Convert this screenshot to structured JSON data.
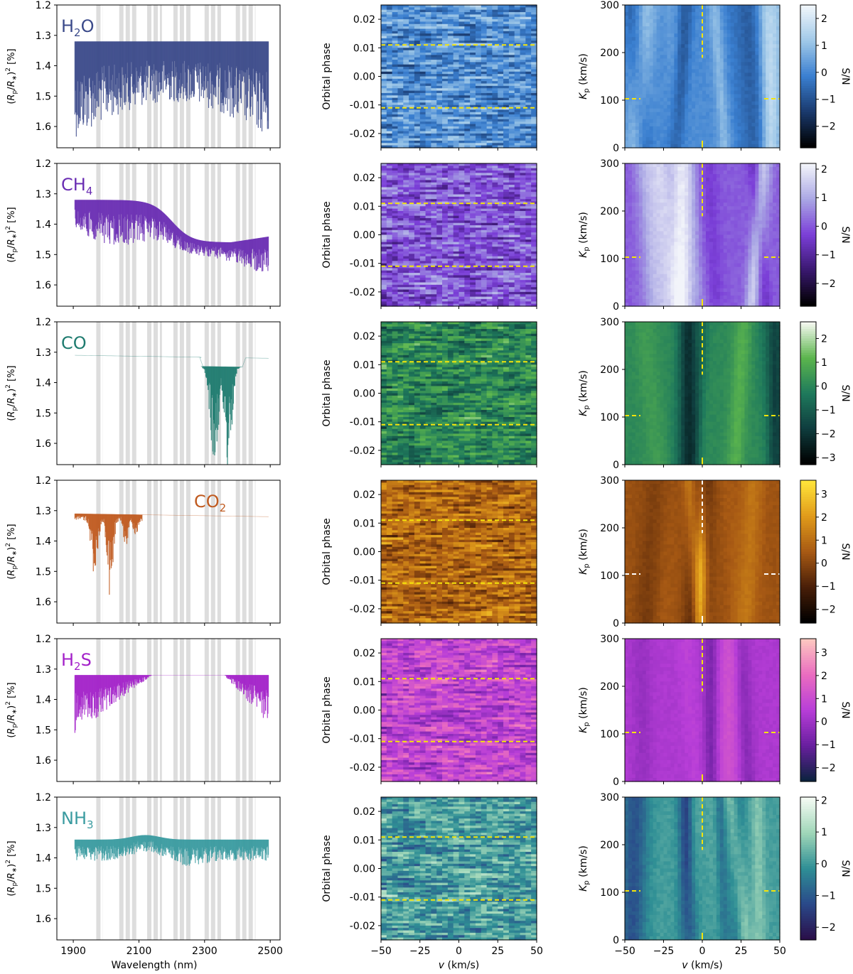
{
  "chart_data": {
    "type": "multi-panel",
    "rows": [
      {
        "species": "H2O",
        "label_main": "H",
        "label_sub": "2",
        "label_after": "O",
        "color": "#3b4a8a",
        "spectrum": {
          "min_rel": 0.0,
          "max_depth": 1.64,
          "baseline": 1.32,
          "profile": "water"
        },
        "cbar": {
          "ticks": [
            2,
            1,
            0,
            -1,
            -2
          ],
          "range": [
            -2.8,
            2.5
          ],
          "colors": [
            "#000000",
            "#1a3a6e",
            "#3a7fd0",
            "#9fc8e8",
            "#f0f6fb"
          ]
        }
      },
      {
        "species": "CH4",
        "label_main": "CH",
        "label_sub": "4",
        "label_after": "",
        "color": "#6a2db3",
        "spectrum": {
          "profile": "methane"
        },
        "cbar": {
          "ticks": [
            2,
            1,
            0,
            -1,
            -2
          ],
          "range": [
            -2.8,
            2.2
          ],
          "colors": [
            "#000000",
            "#3a1870",
            "#7b3fd8",
            "#a9a6e4",
            "#f2f4fa"
          ]
        }
      },
      {
        "species": "CO",
        "label_main": "CO",
        "label_sub": "",
        "label_after": "",
        "color": "#1e7b6f",
        "spectrum": {
          "profile": "co"
        },
        "cbar": {
          "ticks": [
            2,
            1,
            0,
            -1,
            -2,
            -3
          ],
          "range": [
            -3.3,
            2.7
          ],
          "colors": [
            "#000000",
            "#0f3d3e",
            "#1f7a5c",
            "#5bb54d",
            "#f4f8ef"
          ]
        }
      },
      {
        "species": "CO2",
        "label_main": "CO",
        "label_sub": "2",
        "label_after": "",
        "color": "#c05a1f",
        "spectrum": {
          "profile": "co2"
        },
        "cbar": {
          "ticks": [
            3,
            2,
            1,
            0,
            -1,
            -2
          ],
          "range": [
            -2.6,
            3.6
          ],
          "colors": [
            "#000000",
            "#4a1f08",
            "#a85a14",
            "#e09a1a",
            "#ffe43a"
          ]
        }
      },
      {
        "species": "H2S",
        "label_main": "H",
        "label_sub": "2",
        "label_after": "S",
        "color": "#a321c9",
        "spectrum": {
          "profile": "h2s"
        },
        "cbar": {
          "ticks": [
            3,
            2,
            1,
            0,
            -1,
            -2
          ],
          "range": [
            -2.6,
            3.6
          ],
          "colors": [
            "#0d2340",
            "#6a1fa0",
            "#b83ed8",
            "#ea6cc0",
            "#fcc7c0"
          ]
        }
      },
      {
        "species": "NH3",
        "label_main": "NH",
        "label_sub": "3",
        "label_after": "",
        "color": "#3a9ba0",
        "spectrum": {
          "profile": "nh3"
        },
        "cbar": {
          "ticks": [
            2,
            1,
            0,
            -1,
            -2
          ],
          "range": [
            -2.4,
            2.1
          ],
          "colors": [
            "#2a0f4a",
            "#2a4a8a",
            "#2f8f95",
            "#9fd6b8",
            "#f4fbf3"
          ]
        }
      }
    ],
    "left_panel": {
      "ylabel": "(R_p/R_*)^2 [%]",
      "y_ticks": [
        "1.2",
        "1.3",
        "1.4",
        "1.5",
        "1.6"
      ],
      "ylim": [
        1.2,
        1.67
      ],
      "x_ticks": [
        "1900",
        "2100",
        "2300",
        "2500"
      ],
      "xlim": [
        1850,
        2530
      ],
      "xlabel": "Wavelength (nm)",
      "gaps_nm": [
        [
          1970,
          1990
        ],
        [
          2040,
          2095
        ],
        [
          2125,
          2170
        ],
        [
          2205,
          2260
        ],
        [
          2300,
          2350
        ],
        [
          2395,
          2455
        ]
      ]
    },
    "mid_panel": {
      "ylabel": "Orbital phase",
      "y_ticks": [
        "0.02",
        "0.01",
        "0.00",
        "-0.01",
        "-0.02"
      ],
      "ylim": [
        -0.025,
        0.025
      ],
      "x_ticks": [
        "−50",
        "−25",
        "0",
        "25",
        "50"
      ],
      "xlim": [
        -50,
        50
      ],
      "xlabel": "v (km/s)",
      "transit_phase_lines": [
        0.011,
        -0.011
      ]
    },
    "right_panel": {
      "ylabel": "K_p (km/s)",
      "y_ticks": [
        "300",
        "200",
        "100",
        "0"
      ],
      "ylim": [
        0,
        300
      ],
      "x_ticks": [
        "−50",
        "−25",
        "0",
        "25",
        "50"
      ],
      "xlim": [
        -50,
        50
      ],
      "xlabel": "v (km/s)",
      "expected_kp": 103,
      "expected_v": 0,
      "cbar_label": "S/N"
    }
  }
}
